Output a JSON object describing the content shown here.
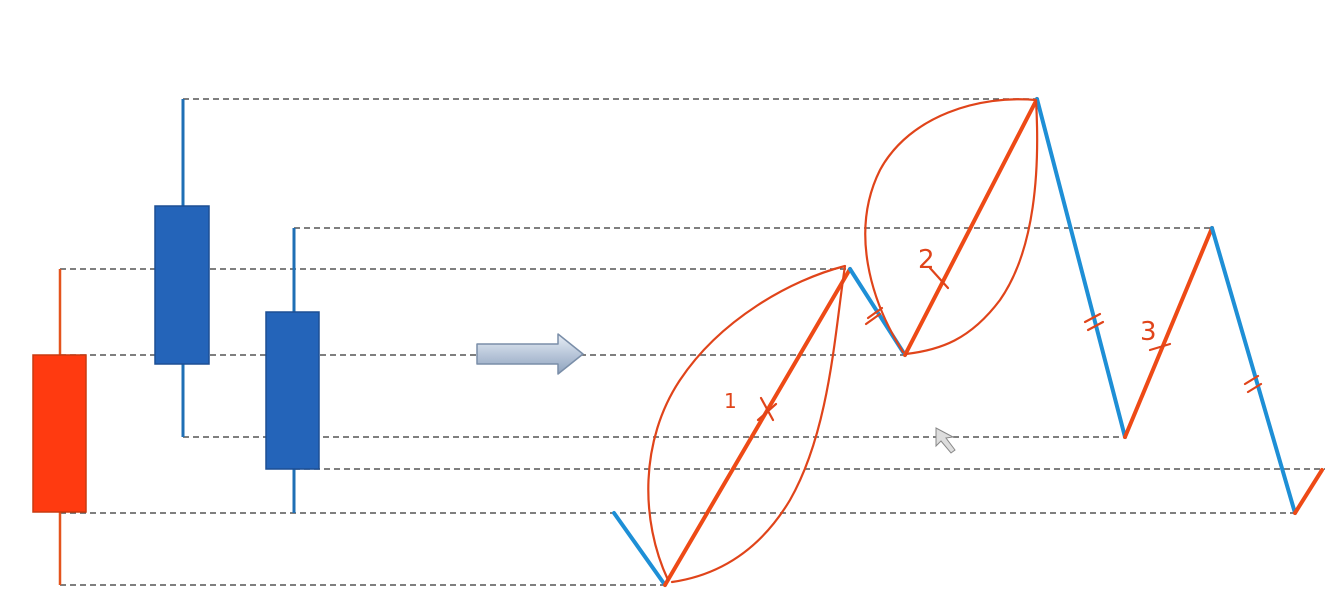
{
  "diagram": {
    "candles": [
      {
        "name": "candle-1",
        "color": "red"
      },
      {
        "name": "candle-2",
        "color": "blue"
      },
      {
        "name": "candle-3",
        "color": "blue"
      }
    ],
    "arrow_icon": "right-arrow-icon",
    "annotations": {
      "label_1": "1",
      "label_2": "2",
      "label_3": "3"
    },
    "colors": {
      "up_candle": "#ff3a10",
      "down_candle": "#2464b9",
      "up_segment": "#ee4a16",
      "down_segment": "#1e8fd6",
      "guide": "#555555",
      "ink": "#e0441a"
    },
    "cursor_icon": "mouse-pointer-icon"
  }
}
